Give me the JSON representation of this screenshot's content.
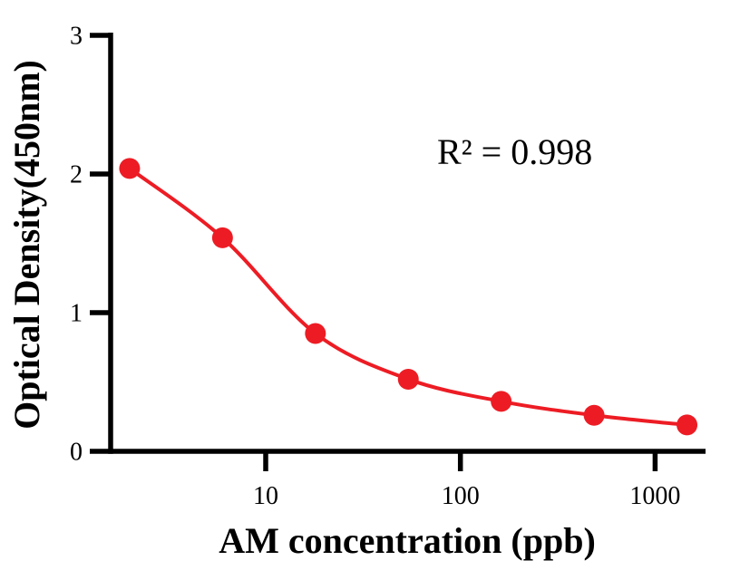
{
  "figure": {
    "background": "#ffffff",
    "axis_color": "#000000",
    "accent_color": "#ED1C24"
  },
  "chart_data": {
    "type": "line",
    "x": [
      2,
      6,
      18,
      54,
      162,
      486,
      1458
    ],
    "y": [
      2.04,
      1.54,
      0.85,
      0.52,
      0.36,
      0.26,
      0.19
    ],
    "xlabel": "AM concentration (ppb)",
    "ylabel": "Optical Density(450nm)",
    "annotation": "R² = 0.998",
    "x_scale": "log",
    "x_ticks": [
      10,
      100,
      1000
    ],
    "x_tick_labels": [
      "10",
      "100",
      "1000"
    ],
    "y_ticks": [
      0,
      1,
      2,
      3
    ],
    "y_tick_labels": [
      "0",
      "1",
      "2",
      "3"
    ],
    "xlim_log": [
      0.2,
      3.26
    ],
    "ylim": [
      0,
      3
    ],
    "grid": false,
    "legend": "none",
    "line_color": "#ED1C24",
    "marker_color": "#ED1C24",
    "marker": "circle"
  }
}
